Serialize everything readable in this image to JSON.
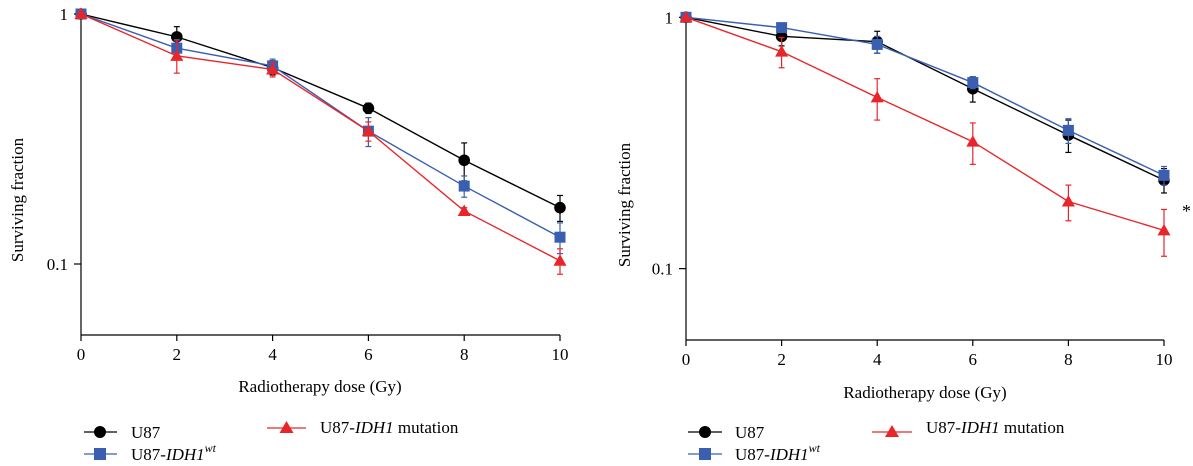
{
  "colors": {
    "U87": "#000000",
    "U87-IDH1wt": "#3a5fb0",
    "U87-IDH1 mutation": "#e8262a"
  },
  "chart_data": [
    {
      "type": "line",
      "panel": "left",
      "xlabel": "Radiotherapy dose (Gy)",
      "ylabel": "Surviving fraction",
      "yscale": "log",
      "xlim": [
        0,
        10
      ],
      "ylim": [
        0.052,
        1
      ],
      "x": [
        0,
        2,
        4,
        6,
        8,
        10
      ],
      "xticks": [
        "0",
        "2",
        "4",
        "6",
        "8",
        "10"
      ],
      "yticks": [
        {
          "value": 1,
          "label": "1"
        },
        {
          "value": 0.1,
          "label": "0.1"
        }
      ],
      "grid": false,
      "legend": "bottom",
      "annotation": "",
      "series": [
        {
          "name": "U87",
          "marker": "circle",
          "values": [
            1.0,
            0.81,
            0.61,
            0.42,
            0.26,
            0.168
          ],
          "errors": [
            0,
            0.08,
            0.04,
            0.02,
            0.045,
            0.02
          ]
        },
        {
          "name": "U87-IDH1wt",
          "marker": "square",
          "values": [
            1.0,
            0.73,
            0.62,
            0.34,
            0.205,
            0.128
          ],
          "errors": [
            0,
            0.06,
            0.04,
            0.045,
            0.02,
            0.018
          ]
        },
        {
          "name": "U87-IDH1 mutation",
          "marker": "triangle",
          "values": [
            1.0,
            0.68,
            0.6,
            0.34,
            0.163,
            0.103
          ],
          "errors": [
            0,
            0.1,
            0.04,
            0.03,
            0.005,
            0.012
          ]
        }
      ]
    },
    {
      "type": "line",
      "panel": "right",
      "xlabel": "Radiotherapy dose (Gy)",
      "ylabel": "Surviving fraction",
      "yscale": "log",
      "xlim": [
        0,
        10
      ],
      "ylim": [
        0.052,
        1.05
      ],
      "x": [
        0,
        2,
        4,
        6,
        8,
        10
      ],
      "xticks": [
        "0",
        "2",
        "4",
        "6",
        "8",
        "10"
      ],
      "yticks": [
        {
          "value": 1,
          "label": "1"
        },
        {
          "value": 0.1,
          "label": "0.1"
        }
      ],
      "grid": false,
      "legend": "bottom",
      "annotation": "*",
      "series": [
        {
          "name": "U87",
          "marker": "circle",
          "values": [
            1.0,
            0.84,
            0.8,
            0.52,
            0.34,
            0.225
          ],
          "errors": [
            0,
            0.07,
            0.08,
            0.06,
            0.05,
            0.025
          ]
        },
        {
          "name": "U87-IDH1wt",
          "marker": "square",
          "values": [
            1.0,
            0.91,
            0.78,
            0.55,
            0.355,
            0.235
          ],
          "errors": [
            0,
            0.03,
            0.06,
            0.03,
            0.04,
            0.02
          ]
        },
        {
          "name": "U87-IDH1 mutation",
          "marker": "triangle",
          "values": [
            1.0,
            0.73,
            0.48,
            0.32,
            0.185,
            0.142
          ],
          "errors": [
            0,
            0.1,
            0.09,
            0.06,
            0.03,
            0.03
          ]
        }
      ]
    }
  ],
  "legend": {
    "u87": "U87",
    "wt_prefix": "U87-",
    "wt_italic": "IDH1",
    "wt_sup": "wt",
    "mut_prefix": "U87-",
    "mut_italic": "IDH1",
    "mut_suffix": " mutation"
  }
}
